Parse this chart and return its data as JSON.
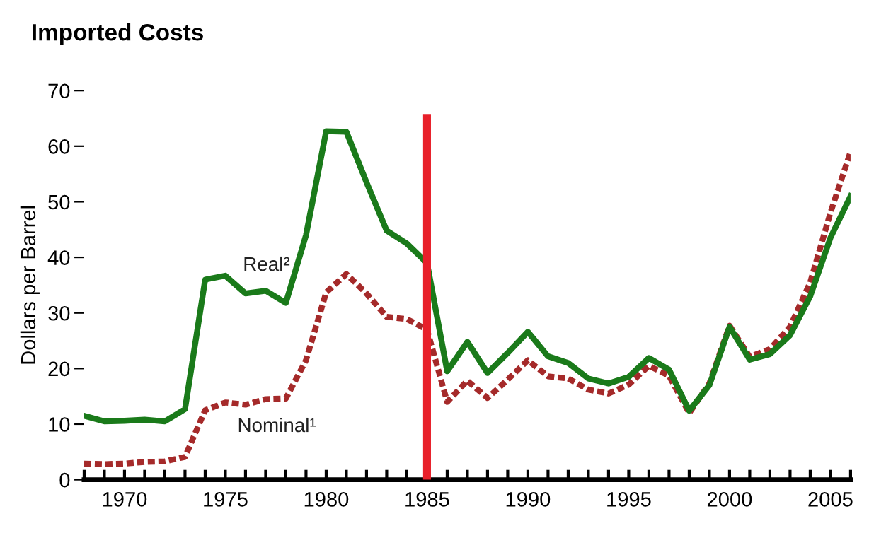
{
  "chart_data": {
    "type": "line",
    "title": "Imported Costs",
    "ylabel": "Dollars per Barrel",
    "x": [
      1968,
      1969,
      1970,
      1971,
      1972,
      1973,
      1974,
      1975,
      1976,
      1977,
      1978,
      1979,
      1980,
      1981,
      1982,
      1983,
      1984,
      1985,
      1986,
      1987,
      1988,
      1989,
      1990,
      1991,
      1992,
      1993,
      1994,
      1995,
      1996,
      1997,
      1998,
      1999,
      2000,
      2001,
      2002,
      2003,
      2004,
      2005,
      2006
    ],
    "series": [
      {
        "name": "Real²",
        "color": "#1a7a1a",
        "line_style": "solid",
        "values": [
          11.5,
          10.5,
          10.6,
          10.8,
          10.5,
          12.7,
          36,
          36.7,
          33.5,
          34,
          31.8,
          44,
          62.7,
          62.6,
          53.5,
          44.8,
          42.5,
          39,
          19.5,
          24.8,
          19.2,
          22.8,
          26.6,
          22.2,
          21,
          18.2,
          17.3,
          18.5,
          21.9,
          19.8,
          12.4,
          17,
          27.5,
          21.6,
          22.6,
          26,
          33,
          43.5,
          51
        ]
      },
      {
        "name": "Nominal¹",
        "color": "#a52a2a",
        "line_style": "dotted",
        "values": [
          2.9,
          2.8,
          2.9,
          3.2,
          3.3,
          4.1,
          12.5,
          13.9,
          13.5,
          14.5,
          14.6,
          21.5,
          33.7,
          37,
          33.5,
          29.3,
          28.9,
          27,
          14,
          17.8,
          14.7,
          18,
          21.5,
          18.6,
          18.2,
          16.2,
          15.5,
          17.1,
          20.5,
          18.7,
          12,
          17.3,
          27.7,
          22.1,
          23.5,
          27.5,
          35.5,
          48,
          59
        ]
      }
    ],
    "xlim": [
      1968,
      2006
    ],
    "xticks": [
      1970,
      1975,
      1980,
      1985,
      1990,
      1995,
      2000,
      2005
    ],
    "ylim": [
      0,
      70
    ],
    "yticks": [
      0,
      10,
      20,
      30,
      40,
      50,
      60,
      70
    ],
    "ref_lines": [
      {
        "axis": "x",
        "value": 1985,
        "color": "#e8202a",
        "line_style": "solid"
      }
    ],
    "grid": false,
    "legend": false,
    "marker": "none"
  }
}
